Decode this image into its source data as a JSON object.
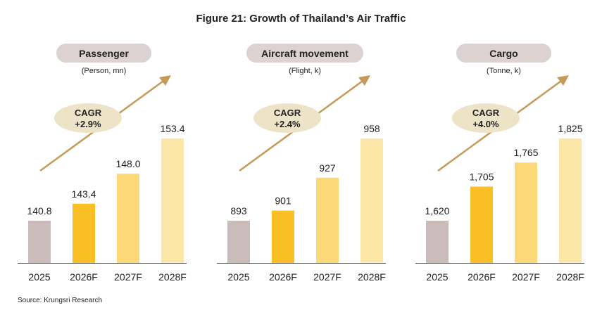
{
  "title": "Figure 21:  Growth of Thailand’s Air Traffic",
  "source": "Source: Krungsri Research",
  "colors": {
    "bars": [
      "#cbbcbc",
      "#fbbf26",
      "#fdd878",
      "#fde7a8"
    ],
    "pill": "#dcd2d2",
    "cagr_ellipse": "#ede3c6",
    "arrow": "#c49a5a",
    "axis": "#444444"
  },
  "chart_data": [
    {
      "type": "bar",
      "title": "Passenger",
      "unit": "(Person, mn)",
      "categories": [
        "2025",
        "2026F",
        "2027F",
        "2028F"
      ],
      "values": [
        140.8,
        143.4,
        148.0,
        153.4
      ],
      "value_labels": [
        "140.8",
        "143.4",
        "148.0",
        "153.4"
      ],
      "cagr_label": "CAGR",
      "cagr_value": "+2.9%"
    },
    {
      "type": "bar",
      "title": "Aircraft movement",
      "unit": "(Flight, k)",
      "categories": [
        "2025",
        "2026F",
        "2027F",
        "2028F"
      ],
      "values": [
        893,
        901,
        927,
        958
      ],
      "value_labels": [
        "893",
        "901",
        "927",
        "958"
      ],
      "cagr_label": "CAGR",
      "cagr_value": "+2.4%"
    },
    {
      "type": "bar",
      "title": "Cargo",
      "unit": "(Tonne, k)",
      "categories": [
        "2025",
        "2026F",
        "2027F",
        "2028F"
      ],
      "values": [
        1620,
        1705,
        1765,
        1825
      ],
      "value_labels": [
        "1,620",
        "1,705",
        "1,765",
        "1,825"
      ],
      "cagr_label": "CAGR",
      "cagr_value": "+4.0%"
    }
  ]
}
